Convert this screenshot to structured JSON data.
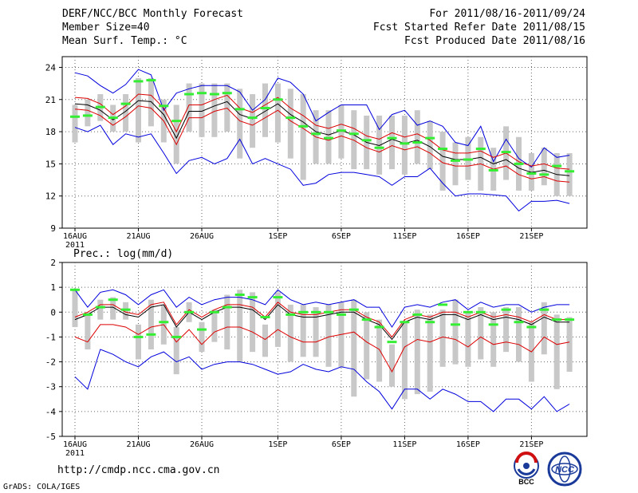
{
  "header": {
    "left": [
      "DERF/NCC/BCC Monthly Forecast",
      "Member Size=40",
      "Mean Surf. Temp.: °C"
    ],
    "right": [
      "For 2011/08/16-2011/09/24",
      "Fcst Started Refer Date 2011/08/15",
      "Fcst Produced Date 2011/08/16"
    ]
  },
  "footer": {
    "url": "http://cmdp.ncc.cma.gov.cn",
    "credit": "GrADS: COLA/IGES"
  },
  "logos": {
    "left_text": "BCC",
    "right_text": "NCC"
  },
  "colors": {
    "box": "#c8c8c8",
    "median": "#33ee33",
    "mean": "#000000",
    "inner_band": "#dd0000",
    "outer_band": "#0000dd",
    "grid": "#666666"
  },
  "chart_data": [
    {
      "type": "line",
      "title": "Mean Surf. Temp.: °C",
      "x": [
        "16AUG",
        "17AUG",
        "18AUG",
        "19AUG",
        "20AUG",
        "21AUG",
        "22AUG",
        "23AUG",
        "24AUG",
        "25AUG",
        "26AUG",
        "27AUG",
        "28AUG",
        "29AUG",
        "30AUG",
        "31AUG",
        "1SEP",
        "2SEP",
        "3SEP",
        "4SEP",
        "5SEP",
        "6SEP",
        "7SEP",
        "8SEP",
        "9SEP",
        "10SEP",
        "11SEP",
        "12SEP",
        "13SEP",
        "14SEP",
        "15SEP",
        "16SEP",
        "17SEP",
        "18SEP",
        "19SEP",
        "20SEP",
        "21SEP",
        "22SEP",
        "23SEP",
        "24SEP"
      ],
      "xticks": [
        "16AUG",
        "21AUG",
        "26AUG",
        "1SEP",
        "6SEP",
        "11SEP",
        "16SEP",
        "21SEP"
      ],
      "xtick_year": "2011",
      "yticks": [
        "9",
        "12",
        "15",
        "18",
        "21",
        "24"
      ],
      "ylim": [
        9,
        25
      ],
      "series": [
        {
          "name": "max",
          "values": [
            23.5,
            23.2,
            22.3,
            21.6,
            22.4,
            23.8,
            23.3,
            20.0,
            21.6,
            22.0,
            22.3,
            22.3,
            22.3,
            21.7,
            20.0,
            21.0,
            23.0,
            22.6,
            21.5,
            19.0,
            19.8,
            20.5,
            20.5,
            20.5,
            18.2,
            19.6,
            20.0,
            18.6,
            19.0,
            18.5,
            17.0,
            16.7,
            18.5,
            15.2,
            17.3,
            15.5,
            14.7,
            16.5,
            15.6,
            15.8
          ]
        },
        {
          "name": "upper",
          "values": [
            21.2,
            21.1,
            20.6,
            19.6,
            20.4,
            21.5,
            21.4,
            20.2,
            18.0,
            20.5,
            20.5,
            21.0,
            21.4,
            20.2,
            19.8,
            20.5,
            21.2,
            20.2,
            19.5,
            18.6,
            18.3,
            18.7,
            18.3,
            17.6,
            17.3,
            17.9,
            17.5,
            17.8,
            17.2,
            16.3,
            16.0,
            16.0,
            16.2,
            15.6,
            16.0,
            15.2,
            14.8,
            15.0,
            14.6,
            14.5
          ]
        },
        {
          "name": "mean",
          "values": [
            20.6,
            20.5,
            20.0,
            19.1,
            19.9,
            20.9,
            20.8,
            19.6,
            17.4,
            19.9,
            19.9,
            20.4,
            20.8,
            19.6,
            19.2,
            19.9,
            20.6,
            19.6,
            18.9,
            18.0,
            17.7,
            18.1,
            17.7,
            17.0,
            16.7,
            17.3,
            16.9,
            17.2,
            16.6,
            15.7,
            15.4,
            15.4,
            15.6,
            15.0,
            15.4,
            14.6,
            14.2,
            14.4,
            14.0,
            13.9
          ]
        },
        {
          "name": "lower",
          "values": [
            20.1,
            20.0,
            19.5,
            18.6,
            19.4,
            20.4,
            20.2,
            19.0,
            16.8,
            19.3,
            19.3,
            19.9,
            20.2,
            19.0,
            18.6,
            19.3,
            20.0,
            19.0,
            18.3,
            17.5,
            17.2,
            17.6,
            17.2,
            16.5,
            16.1,
            16.7,
            16.3,
            16.6,
            16.0,
            15.1,
            14.8,
            14.8,
            15.0,
            14.5,
            14.8,
            14.0,
            13.6,
            13.8,
            13.4,
            13.3
          ]
        },
        {
          "name": "min",
          "values": [
            18.4,
            18.0,
            18.6,
            16.8,
            17.8,
            17.5,
            17.8,
            16.0,
            14.1,
            15.3,
            15.6,
            15.0,
            15.5,
            17.3,
            15.0,
            15.5,
            15.0,
            14.5,
            13.0,
            13.2,
            14.0,
            14.2,
            14.2,
            14.0,
            13.8,
            13.0,
            13.8,
            13.8,
            14.6,
            13.2,
            12.0,
            12.2,
            12.2,
            12.1,
            12.0,
            10.6,
            11.5,
            11.5,
            11.6,
            11.3
          ]
        }
      ],
      "boxes": [
        {
          "lo": 17.0,
          "hi": 20.5
        },
        {
          "lo": 18.5,
          "hi": 21.0
        },
        {
          "lo": 19.0,
          "hi": 21.5
        },
        {
          "lo": 18.0,
          "hi": 20.5
        },
        {
          "lo": 18.0,
          "hi": 21.5
        },
        {
          "lo": 17.0,
          "hi": 23.0
        },
        {
          "lo": 18.5,
          "hi": 23.0
        },
        {
          "lo": 17.0,
          "hi": 21.0
        },
        {
          "lo": 15.0,
          "hi": 20.5
        },
        {
          "lo": 18.0,
          "hi": 22.5
        },
        {
          "lo": 17.5,
          "hi": 22.5
        },
        {
          "lo": 17.5,
          "hi": 22.5
        },
        {
          "lo": 18.0,
          "hi": 22.5
        },
        {
          "lo": 15.5,
          "hi": 22.0
        },
        {
          "lo": 16.5,
          "hi": 21.5
        },
        {
          "lo": 17.5,
          "hi": 22.5
        },
        {
          "lo": 17.0,
          "hi": 22.5
        },
        {
          "lo": 15.5,
          "hi": 22.0
        },
        {
          "lo": 13.5,
          "hi": 21.5
        },
        {
          "lo": 15.0,
          "hi": 20.0
        },
        {
          "lo": 15.0,
          "hi": 20.0
        },
        {
          "lo": 15.5,
          "hi": 20.5
        },
        {
          "lo": 14.5,
          "hi": 20.0
        },
        {
          "lo": 14.5,
          "hi": 19.5
        },
        {
          "lo": 14.0,
          "hi": 19.5
        },
        {
          "lo": 14.5,
          "hi": 19.5
        },
        {
          "lo": 14.0,
          "hi": 19.5
        },
        {
          "lo": 15.0,
          "hi": 20.0
        },
        {
          "lo": 14.5,
          "hi": 19.0
        },
        {
          "lo": 12.5,
          "hi": 18.0
        },
        {
          "lo": 13.0,
          "hi": 17.0
        },
        {
          "lo": 13.5,
          "hi": 17.5
        },
        {
          "lo": 12.5,
          "hi": 17.5
        },
        {
          "lo": 12.5,
          "hi": 16.5
        },
        {
          "lo": 13.5,
          "hi": 18.5
        },
        {
          "lo": 12.5,
          "hi": 17.5
        },
        {
          "lo": 12.5,
          "hi": 16.0
        },
        {
          "lo": 13.0,
          "hi": 16.5
        },
        {
          "lo": 12.0,
          "hi": 16.0
        },
        {
          "lo": 12.0,
          "hi": 16.0
        }
      ],
      "medians": [
        19.4,
        19.5,
        20.3,
        19.3,
        20.6,
        22.7,
        22.8,
        20.4,
        19.0,
        21.5,
        21.6,
        21.5,
        21.6,
        20.1,
        19.3,
        20.2,
        21.0,
        19.3,
        18.5,
        17.8,
        17.4,
        18.1,
        17.8,
        17.2,
        16.5,
        17.4,
        16.9,
        17.0,
        17.4,
        16.4,
        15.3,
        15.4,
        16.4,
        14.4,
        16.1,
        15.0,
        14.1,
        14.0,
        14.8,
        14.3
      ]
    },
    {
      "type": "line",
      "title": "Prec.: log(mm/d)",
      "x": [
        "16AUG",
        "17AUG",
        "18AUG",
        "19AUG",
        "20AUG",
        "21AUG",
        "22AUG",
        "23AUG",
        "24AUG",
        "25AUG",
        "26AUG",
        "27AUG",
        "28AUG",
        "29AUG",
        "30AUG",
        "31AUG",
        "1SEP",
        "2SEP",
        "3SEP",
        "4SEP",
        "5SEP",
        "6SEP",
        "7SEP",
        "8SEP",
        "9SEP",
        "10SEP",
        "11SEP",
        "12SEP",
        "13SEP",
        "14SEP",
        "15SEP",
        "16SEP",
        "17SEP",
        "18SEP",
        "19SEP",
        "20SEP",
        "21SEP",
        "22SEP",
        "23SEP",
        "24SEP"
      ],
      "xticks": [
        "16AUG",
        "21AUG",
        "26AUG",
        "1SEP",
        "6SEP",
        "11SEP",
        "16SEP",
        "21SEP"
      ],
      "xtick_year": "2011",
      "yticks": [
        "-5",
        "-4",
        "-3",
        "-2",
        "-1",
        "0",
        "1",
        "2"
      ],
      "ylim": [
        -5,
        2
      ],
      "series": [
        {
          "name": "max",
          "values": [
            0.9,
            0.2,
            0.8,
            0.9,
            0.7,
            0.3,
            0.7,
            0.9,
            0.2,
            0.6,
            0.3,
            0.5,
            0.6,
            0.6,
            0.5,
            0.3,
            0.9,
            0.5,
            0.3,
            0.4,
            0.3,
            0.4,
            0.5,
            0.2,
            0.2,
            -0.6,
            0.2,
            0.3,
            0.2,
            0.4,
            0.5,
            0.1,
            0.4,
            0.2,
            0.3,
            0.3,
            0.0,
            0.2,
            0.3,
            0.3
          ]
        },
        {
          "name": "upper",
          "values": [
            -0.2,
            0.0,
            0.3,
            0.3,
            0.0,
            -0.1,
            0.3,
            0.4,
            -0.5,
            0.1,
            -0.2,
            0.1,
            0.3,
            0.3,
            0.2,
            -0.2,
            0.4,
            0.0,
            -0.1,
            -0.1,
            0.0,
            0.1,
            0.1,
            -0.2,
            -0.4,
            -1.0,
            -0.3,
            -0.1,
            -0.2,
            0.0,
            0.0,
            -0.2,
            0.0,
            -0.2,
            -0.1,
            -0.2,
            -0.4,
            -0.1,
            -0.3,
            -0.3
          ]
        },
        {
          "name": "mean",
          "values": [
            -0.3,
            -0.1,
            0.2,
            0.2,
            -0.1,
            -0.2,
            0.2,
            0.3,
            -0.6,
            0.0,
            -0.3,
            0.0,
            0.2,
            0.2,
            0.1,
            -0.3,
            0.3,
            -0.1,
            -0.2,
            -0.2,
            -0.1,
            0.0,
            0.0,
            -0.3,
            -0.5,
            -1.1,
            -0.4,
            -0.2,
            -0.3,
            -0.1,
            -0.1,
            -0.3,
            -0.1,
            -0.3,
            -0.2,
            -0.3,
            -0.5,
            -0.2,
            -0.4,
            -0.4
          ]
        },
        {
          "name": "lower",
          "values": [
            -1.0,
            -1.2,
            -0.5,
            -0.5,
            -0.6,
            -0.9,
            -0.6,
            -0.5,
            -1.2,
            -0.7,
            -1.3,
            -0.8,
            -0.6,
            -0.6,
            -0.8,
            -1.1,
            -0.7,
            -1.0,
            -1.2,
            -1.2,
            -1.0,
            -0.9,
            -0.8,
            -1.2,
            -1.5,
            -2.4,
            -1.4,
            -1.1,
            -1.2,
            -1.0,
            -1.1,
            -1.4,
            -1.0,
            -1.3,
            -1.2,
            -1.3,
            -1.6,
            -1.0,
            -1.3,
            -1.2
          ]
        },
        {
          "name": "min",
          "values": [
            -2.6,
            -3.1,
            -1.5,
            -1.7,
            -2.0,
            -2.2,
            -1.8,
            -1.6,
            -2.0,
            -1.8,
            -2.3,
            -2.1,
            -2.0,
            -2.0,
            -2.1,
            -2.3,
            -2.5,
            -2.4,
            -2.1,
            -2.3,
            -2.4,
            -2.2,
            -2.3,
            -2.8,
            -3.2,
            -3.9,
            -3.1,
            -3.1,
            -3.5,
            -3.1,
            -3.3,
            -3.6,
            -3.6,
            -4.0,
            -3.5,
            -3.5,
            -3.9,
            -3.4,
            -4.0,
            -3.7
          ]
        }
      ],
      "boxes": [
        {
          "lo": -0.6,
          "hi": 0.9
        },
        {
          "lo": -1.5,
          "hi": 0.0
        },
        {
          "lo": -0.3,
          "hi": 0.5
        },
        {
          "lo": -0.3,
          "hi": 0.6
        },
        {
          "lo": -0.3,
          "hi": 0.4
        },
        {
          "lo": -1.9,
          "hi": -0.5
        },
        {
          "lo": -1.5,
          "hi": 0.5
        },
        {
          "lo": -1.3,
          "hi": 0.3
        },
        {
          "lo": -2.5,
          "hi": -0.6
        },
        {
          "lo": -0.4,
          "hi": 0.4
        },
        {
          "lo": -1.6,
          "hi": -0.4
        },
        {
          "lo": -1.2,
          "hi": 0.1
        },
        {
          "lo": -1.5,
          "hi": 0.7
        },
        {
          "lo": -2.0,
          "hi": 0.9
        },
        {
          "lo": -1.6,
          "hi": 0.8
        },
        {
          "lo": -1.8,
          "hi": -0.5
        },
        {
          "lo": -1.4,
          "hi": 0.8
        },
        {
          "lo": -2.0,
          "hi": 0.3
        },
        {
          "lo": -1.8,
          "hi": 0.3
        },
        {
          "lo": -1.8,
          "hi": 0.2
        },
        {
          "lo": -2.2,
          "hi": 0.3
        },
        {
          "lo": -2.2,
          "hi": 0.4
        },
        {
          "lo": -3.4,
          "hi": 0.5
        },
        {
          "lo": -2.7,
          "hi": 0.0
        },
        {
          "lo": -2.8,
          "hi": -0.3
        },
        {
          "lo": -3.0,
          "hi": -1.3
        },
        {
          "lo": -3.5,
          "hi": -0.4
        },
        {
          "lo": -3.3,
          "hi": 0.1
        },
        {
          "lo": -3.2,
          "hi": -0.1
        },
        {
          "lo": -2.2,
          "hi": 0.1
        },
        {
          "lo": -2.1,
          "hi": 0.5
        },
        {
          "lo": -2.2,
          "hi": 0.0
        },
        {
          "lo": -1.9,
          "hi": 0.2
        },
        {
          "lo": -2.2,
          "hi": 0.0
        },
        {
          "lo": -1.6,
          "hi": 0.2
        },
        {
          "lo": -2.0,
          "hi": 0.2
        },
        {
          "lo": -2.8,
          "hi": -0.4
        },
        {
          "lo": -1.7,
          "hi": 0.4
        },
        {
          "lo": -3.1,
          "hi": -0.1
        },
        {
          "lo": -2.4,
          "hi": -0.2
        }
      ],
      "medians": [
        0.9,
        -0.1,
        0.2,
        0.5,
        0.1,
        -1.0,
        -0.9,
        -0.4,
        -1.0,
        0.0,
        -0.7,
        0.0,
        0.2,
        0.7,
        0.6,
        -0.2,
        0.6,
        -0.1,
        0.0,
        0.0,
        0.0,
        -0.1,
        0.1,
        -0.3,
        -0.6,
        -1.2,
        -0.4,
        -0.1,
        -0.4,
        0.3,
        -0.5,
        0.0,
        0.0,
        -0.5,
        0.1,
        -0.4,
        -0.6,
        0.1,
        -0.3,
        -0.3
      ]
    }
  ]
}
